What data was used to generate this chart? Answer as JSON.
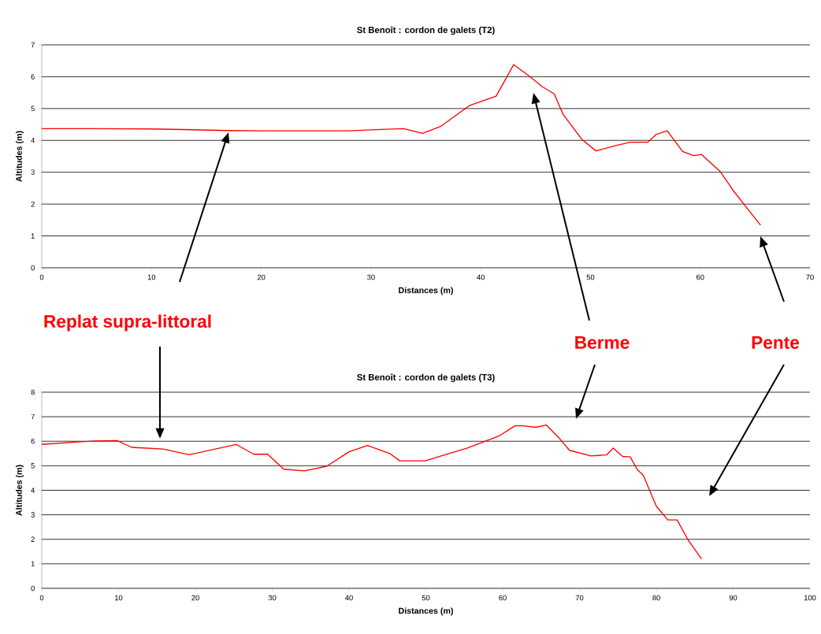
{
  "chart_data": [
    {
      "type": "line",
      "title": "St Benoît : cordon de galets (T2)",
      "xlabel": "Distances (m)",
      "ylabel": "Altitudes (m)",
      "x": [
        0,
        5,
        10,
        13,
        17,
        20,
        25,
        28,
        30,
        33,
        34.7,
        36.4,
        39.0,
        41.4,
        43.0,
        44.5,
        45.6,
        46.7,
        47.5,
        49.2,
        50.5,
        52.0,
        53.6,
        55.2,
        56.0,
        57.0,
        58.4,
        59.4,
        60.1,
        61.8,
        63.0,
        64.2,
        65.5
      ],
      "series": [
        {
          "color": "#ff0000",
          "values": [
            4.37,
            4.37,
            4.36,
            4.34,
            4.31,
            4.3,
            4.3,
            4.3,
            4.33,
            4.37,
            4.22,
            4.45,
            5.1,
            5.39,
            6.38,
            6.0,
            5.69,
            5.46,
            4.82,
            4.04,
            3.67,
            3.81,
            3.94,
            3.94,
            4.19,
            4.3,
            3.65,
            3.52,
            3.56,
            3.03,
            2.43,
            1.9,
            1.34
          ]
        }
      ],
      "xlim": [
        0,
        70
      ],
      "xticks": [
        0,
        10,
        20,
        30,
        40,
        50,
        60,
        70
      ],
      "ylim": [
        0,
        7
      ],
      "yticks": [
        0,
        1,
        2,
        3,
        4,
        5,
        6,
        7
      ],
      "grid": "y",
      "annotations": [
        "Replat supra-littoral",
        "Berme",
        "Pente"
      ]
    },
    {
      "type": "line",
      "title": "St Benoît : cordon de galets (T3)",
      "xlabel": "Distances (m)",
      "ylabel": "Altitudes (m)",
      "x": [
        0,
        4.8,
        6.9,
        9.8,
        11.7,
        15.8,
        19.2,
        25.3,
        27.6,
        29.4,
        31.5,
        34.2,
        37.1,
        40.0,
        42.4,
        45.3,
        46.6,
        49.9,
        55.4,
        59.5,
        61.6,
        62.6,
        64.3,
        65.7,
        67.4,
        68.7,
        71.5,
        73.5,
        74.4,
        75.6,
        76.6,
        77.5,
        78.3,
        80.0,
        81.5,
        82.7,
        84.1,
        85.9
      ],
      "series": [
        {
          "color": "#ff0000",
          "values": [
            5.87,
            5.97,
            6.01,
            6.03,
            5.75,
            5.68,
            5.45,
            5.87,
            5.47,
            5.47,
            4.86,
            4.79,
            4.98,
            5.57,
            5.83,
            5.5,
            5.2,
            5.2,
            5.72,
            6.21,
            6.63,
            6.63,
            6.57,
            6.66,
            6.11,
            5.63,
            5.4,
            5.44,
            5.72,
            5.38,
            5.36,
            4.85,
            4.61,
            3.35,
            2.79,
            2.79,
            1.99,
            1.19
          ]
        }
      ],
      "xlim": [
        0,
        100
      ],
      "xticks": [
        0,
        10,
        20,
        30,
        40,
        50,
        60,
        70,
        80,
        90,
        100
      ],
      "ylim": [
        0,
        8
      ],
      "yticks": [
        0,
        1,
        2,
        3,
        4,
        5,
        6,
        7,
        8
      ],
      "grid": "y"
    }
  ]
}
